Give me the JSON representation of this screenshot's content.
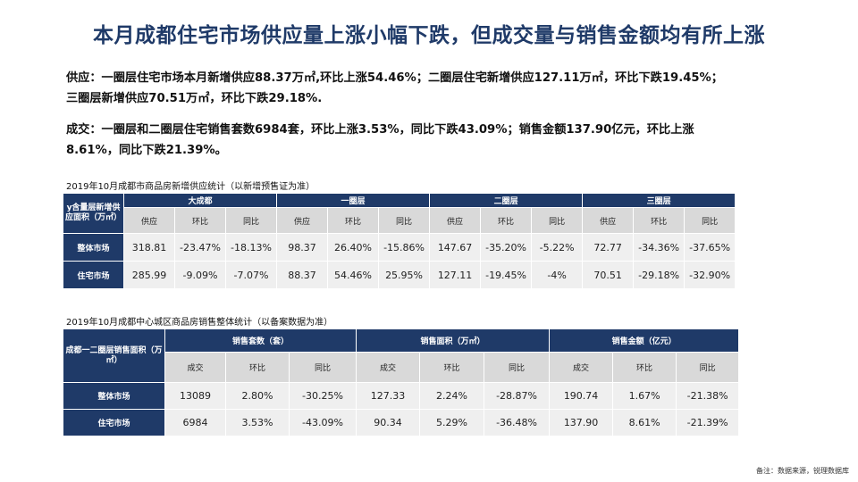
{
  "title": "本月成都住宅市场供应量上涨小幅下跌，但成交量与销售金额均有所上涨",
  "paragraphs": {
    "supply": "供应：一圈层住宅市场本月新增供应88.37万㎡,环比上涨54.46%；二圈层住宅新增供应127.11万㎡，环比下跌19.45%；三圈层新增供应70.51万㎡，环比下跌29.18%.",
    "deals": "成交：一圈层和二圈层住宅销售套数6984套，环比上涨3.53%，同比下跌43.09%；销售金额137.90亿元，环比上涨8.61%，同比下跌21.39%。"
  },
  "table1": {
    "caption": "2019年10月成都市商品房新增供应统计（以新增预售证为准）",
    "corner": "y含量层新增供应面积（万㎡）",
    "groups": [
      "大成都",
      "一圈层",
      "二圈层",
      "三圈层"
    ],
    "subheaders": [
      "供应",
      "环比",
      "同比"
    ],
    "rows": [
      {
        "label": "整体市场",
        "values": [
          "318.81",
          "-23.47%",
          "-18.13%",
          "98.37",
          "26.40%",
          "-15.86%",
          "147.67",
          "-35.20%",
          "-5.22%",
          "72.77",
          "-34.36%",
          "-37.65%"
        ]
      },
      {
        "label": "住宅市场",
        "values": [
          "285.99",
          "-9.09%",
          "-7.07%",
          "88.37",
          "54.46%",
          "25.95%",
          "127.11",
          "-19.45%",
          "-4%",
          "70.51",
          "-29.18%",
          "-32.90%"
        ]
      }
    ]
  },
  "table2": {
    "caption": "2019年10月成都中心城区商品房销售整体统计（以备案数据为准）",
    "corner": "成都一二圈层销售面积（万㎡）",
    "groups": [
      "销售套数（套）",
      "销售面积（万㎡）",
      "销售金额（亿元）"
    ],
    "subheaders": [
      "成交",
      "环比",
      "同比"
    ],
    "rows": [
      {
        "label": "整体市场",
        "values": [
          "13089",
          "2.80%",
          "-30.25%",
          "127.33",
          "2.24%",
          "-28.87%",
          "190.74",
          "1.67%",
          "-21.38%"
        ]
      },
      {
        "label": "住宅市场",
        "values": [
          "6984",
          "3.53%",
          "-43.09%",
          "90.34",
          "5.29%",
          "-36.48%",
          "137.90",
          "8.61%",
          "-21.39%"
        ]
      }
    ]
  },
  "footnote": "备注：数据来源，锐理数据库",
  "colors": {
    "header": "#1f3a68",
    "subheader": "#d9d9d9",
    "cell": "#efefef"
  }
}
